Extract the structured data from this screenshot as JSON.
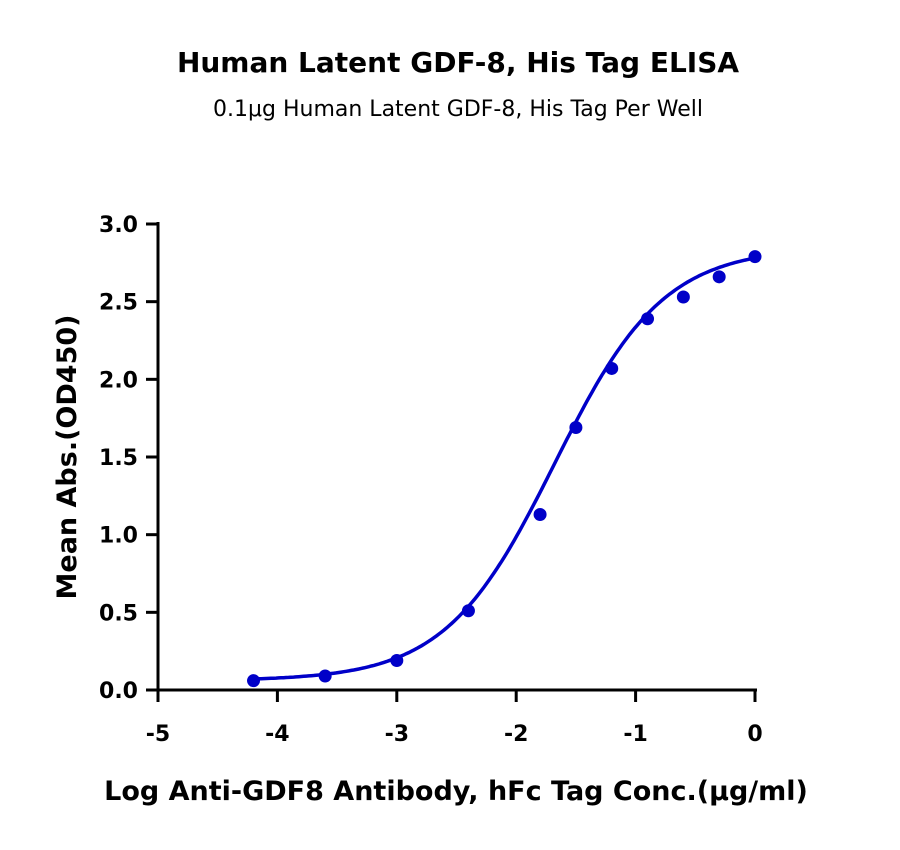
{
  "chart_data": {
    "type": "scatter",
    "title": "Human Latent GDF-8, His Tag ELISA",
    "subtitle": "0.1μg Human Latent GDF-8, His Tag Per Well",
    "xlabel": "Log Anti-GDF8 Antibody, hFc Tag Conc.(μg/ml)",
    "ylabel": "Mean Abs.(OD450)",
    "xlim": [
      -5,
      0
    ],
    "ylim": [
      0,
      3.0
    ],
    "xticks": [
      "-5",
      "-4",
      "-3",
      "-2",
      "-1",
      "0"
    ],
    "yticks": [
      "0.0",
      "0.5",
      "1.0",
      "1.5",
      "2.0",
      "2.5",
      "3.0"
    ],
    "grid": false,
    "color": "#0000c8",
    "series": [
      {
        "x": [
          -4.2,
          -3.6,
          -3.0,
          -2.4,
          -1.8,
          -1.5,
          -1.2,
          -0.9,
          -0.6,
          -0.3,
          0
        ],
        "y": [
          0.06,
          0.09,
          0.19,
          0.51,
          1.13,
          1.69,
          2.07,
          2.39,
          2.53,
          2.66,
          2.79
        ],
        "fit": "four-parameter logistic curve"
      }
    ]
  }
}
